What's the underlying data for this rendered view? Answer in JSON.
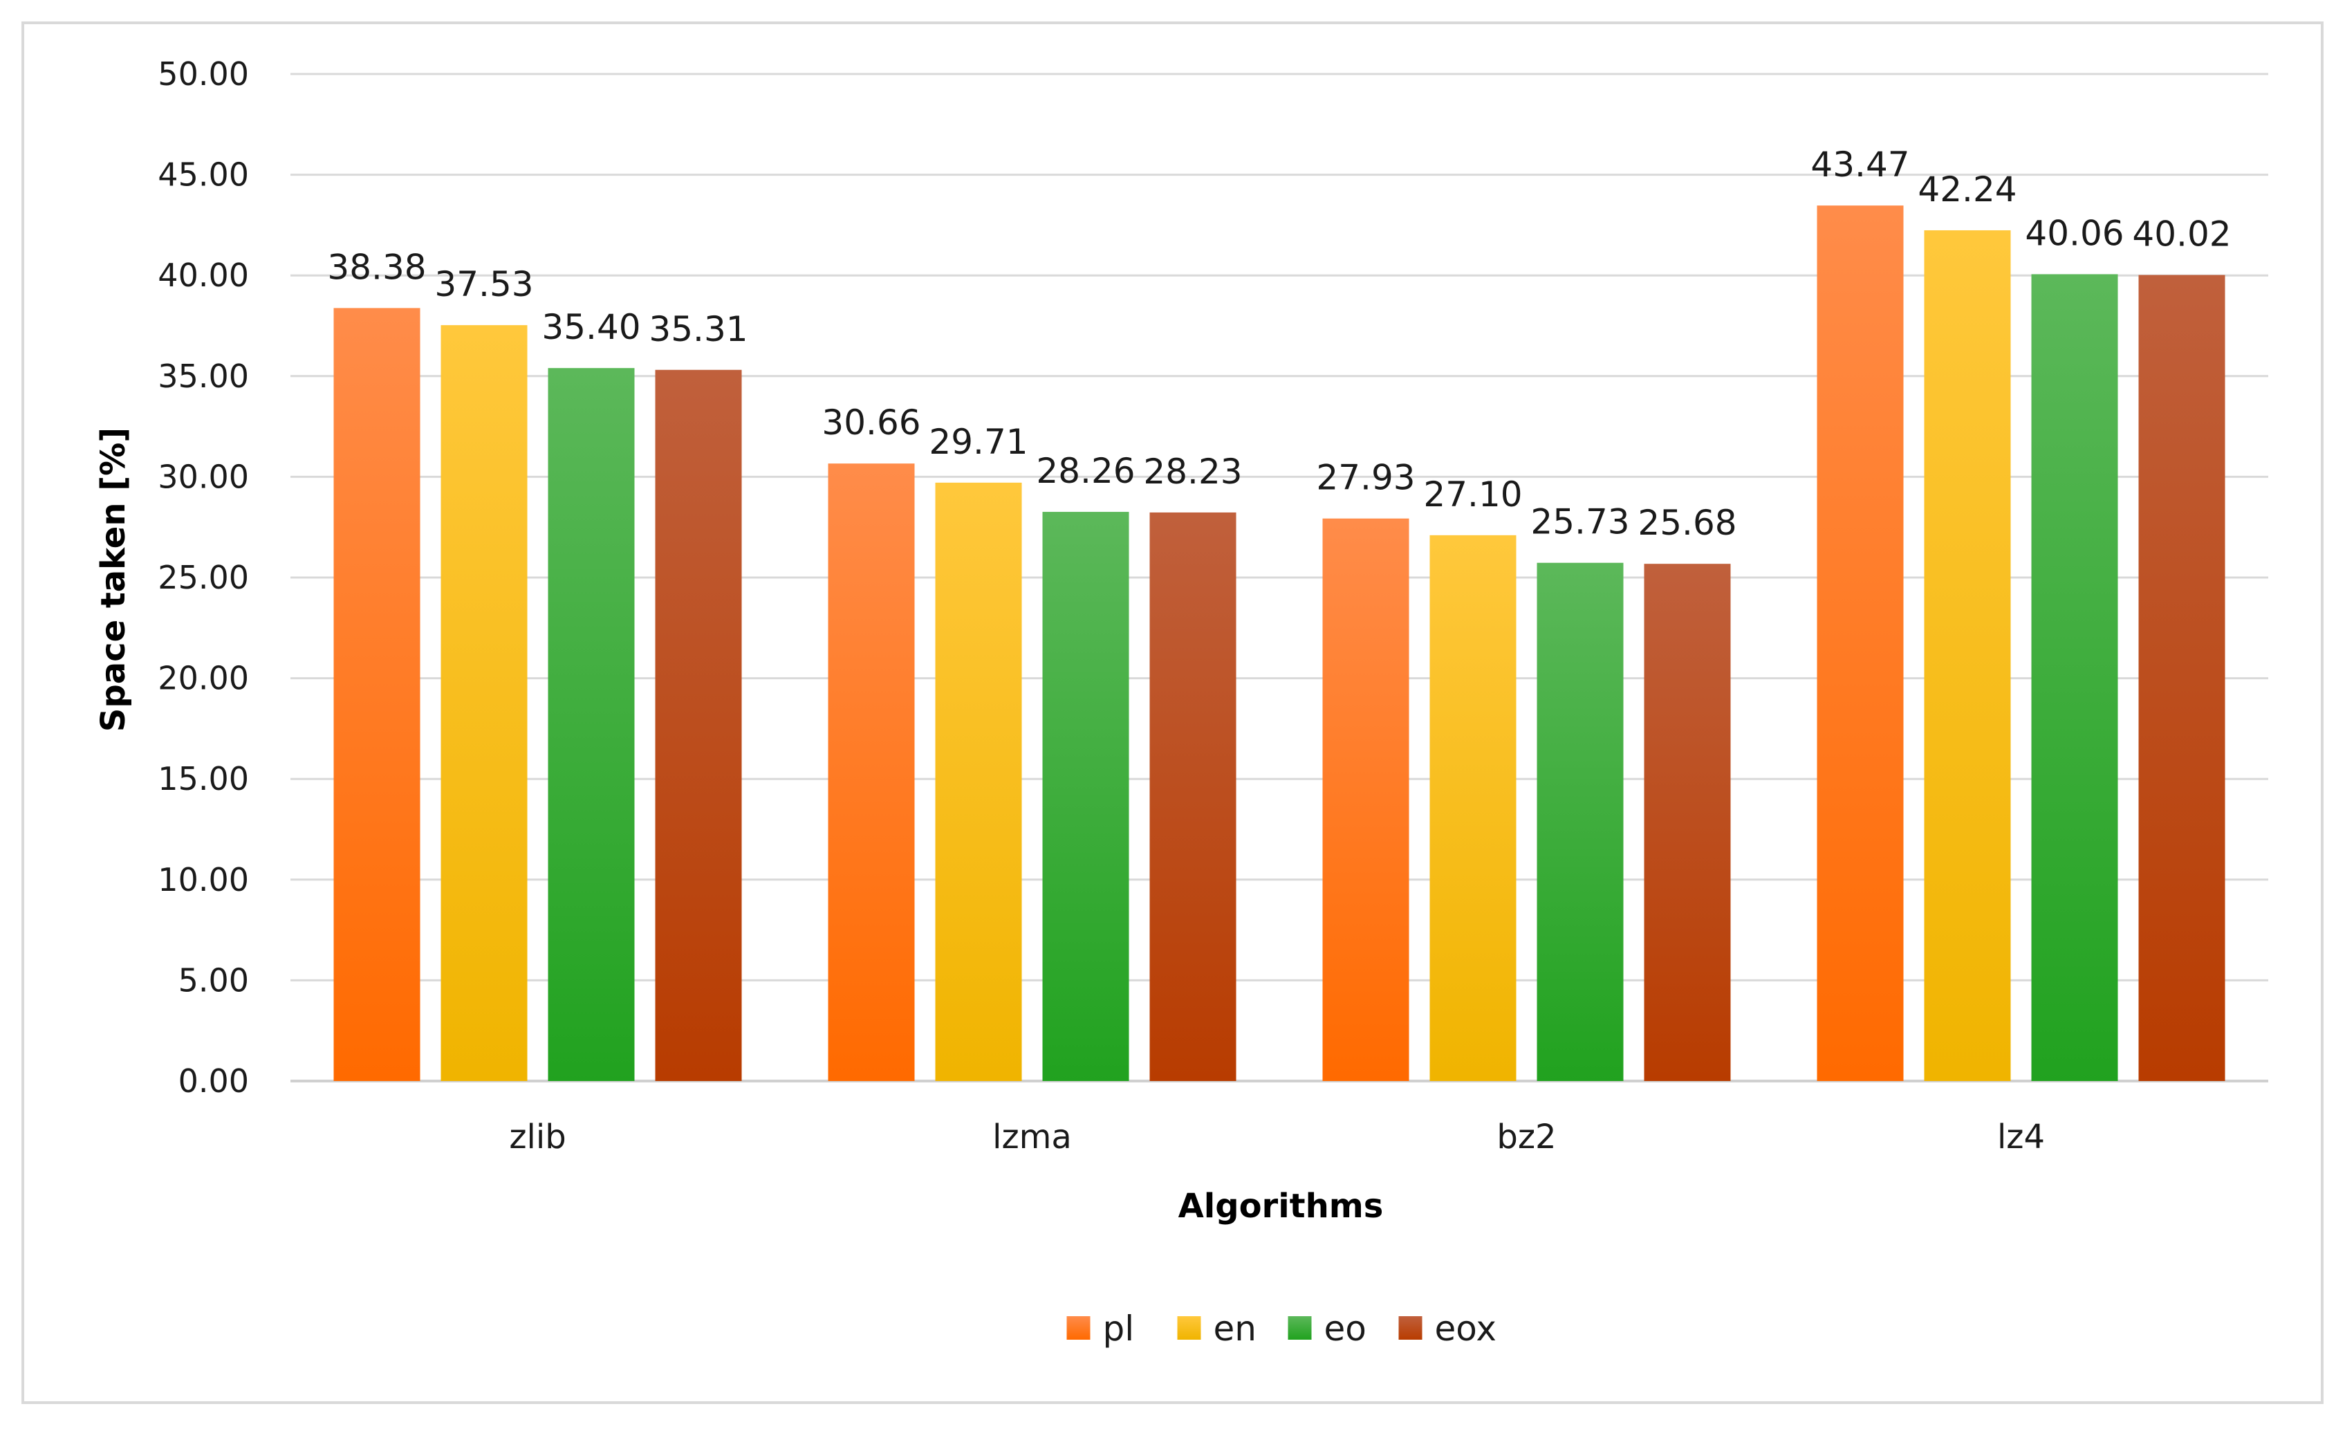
{
  "chart_data": {
    "type": "bar",
    "title": "",
    "xlabel": "Algorithms",
    "ylabel": "Space taken [%]",
    "ylim": [
      0,
      50
    ],
    "ytick_step": 5,
    "ytick_decimals": 2,
    "categories": [
      "zlib",
      "lzma",
      "bz2",
      "lz4"
    ],
    "series": [
      {
        "name": "pl",
        "values": [
          38.38,
          30.66,
          27.93,
          43.47
        ],
        "color": "#ff7a1a",
        "gradient": [
          "#ff8c4a",
          "#ff6a00"
        ]
      },
      {
        "name": "en",
        "values": [
          37.53,
          29.71,
          27.1,
          42.24
        ],
        "color": "#ffc000",
        "gradient": [
          "#ffc83c",
          "#f0b400"
        ]
      },
      {
        "name": "eo",
        "values": [
          35.4,
          28.26,
          25.73,
          40.06
        ],
        "color": "#3aa832",
        "gradient": [
          "#5cb85a",
          "#21a21f"
        ]
      },
      {
        "name": "eox",
        "values": [
          35.31,
          28.23,
          25.68,
          40.02
        ],
        "color": "#c0501f",
        "gradient": [
          "#c0603c",
          "#b83c00"
        ]
      }
    ],
    "grid": true,
    "legend_position": "bottom-center"
  }
}
